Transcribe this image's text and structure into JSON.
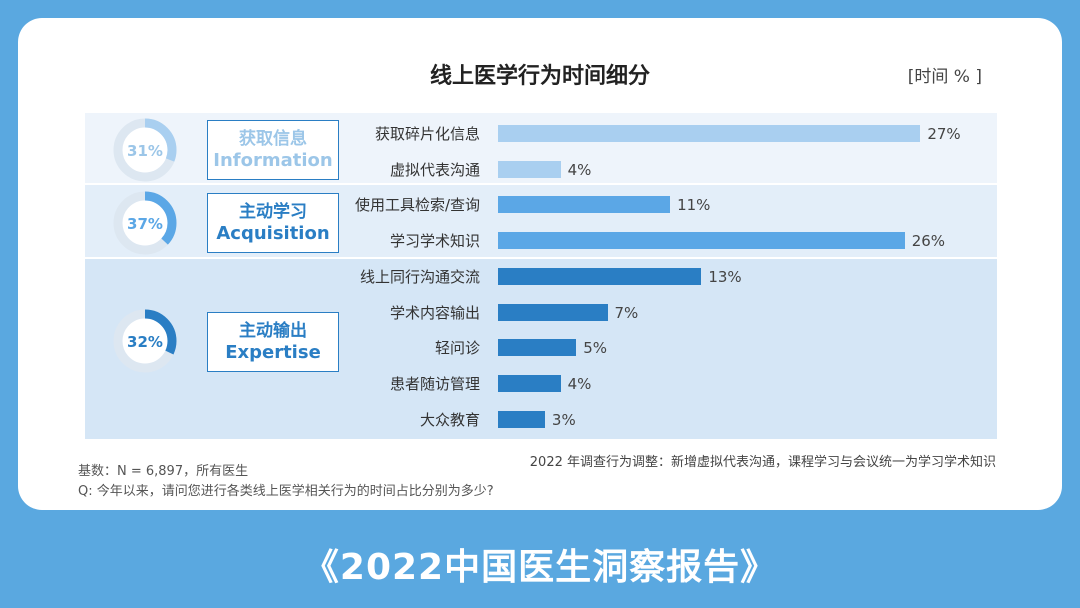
{
  "report": {
    "title": "《2022中国医生洞察报告》"
  },
  "chart_data": {
    "type": "bar",
    "orientation": "horizontal",
    "title": "线上医学行为时间细分",
    "unit": "[时间 % ]",
    "categories": [
      "获取碎片化信息",
      "虚拟代表沟通",
      "使用工具检索/查询",
      "学习学术知识",
      "线上同行沟通交流",
      "学术内容输出",
      "轻问诊",
      "患者随访管理",
      "大众教育"
    ],
    "values": [
      27,
      4,
      11,
      26,
      13,
      7,
      5,
      4,
      3
    ],
    "value_labels": [
      "27%",
      "4%",
      "11%",
      "26%",
      "13%",
      "7%",
      "5%",
      "4%",
      "3%"
    ],
    "xlim": [
      0,
      28
    ],
    "groups": [
      {
        "cn": "获取信息",
        "en": "Information",
        "percent_value": 31,
        "percent_label": "31%",
        "count": 2,
        "color": "#a9cff0"
      },
      {
        "cn": "主动学习",
        "en": "Acquisition",
        "percent_value": 37,
        "percent_label": "37%",
        "count": 2,
        "color": "#5ba7e6"
      },
      {
        "cn": "主动输出",
        "en": "Expertise",
        "percent_value": 32,
        "percent_label": "32%",
        "count": 5,
        "color": "#2a7ec4"
      }
    ]
  },
  "notes": {
    "adjustment": "2022 年调查行为调整：新增虚拟代表沟通，课程学习与会议统一为学习学术知识",
    "base": "基数：N = 6,897，所有医生",
    "question": "Q: 今年以来，请问您进行各类线上医学相关行为的时间占比分别为多少?"
  }
}
